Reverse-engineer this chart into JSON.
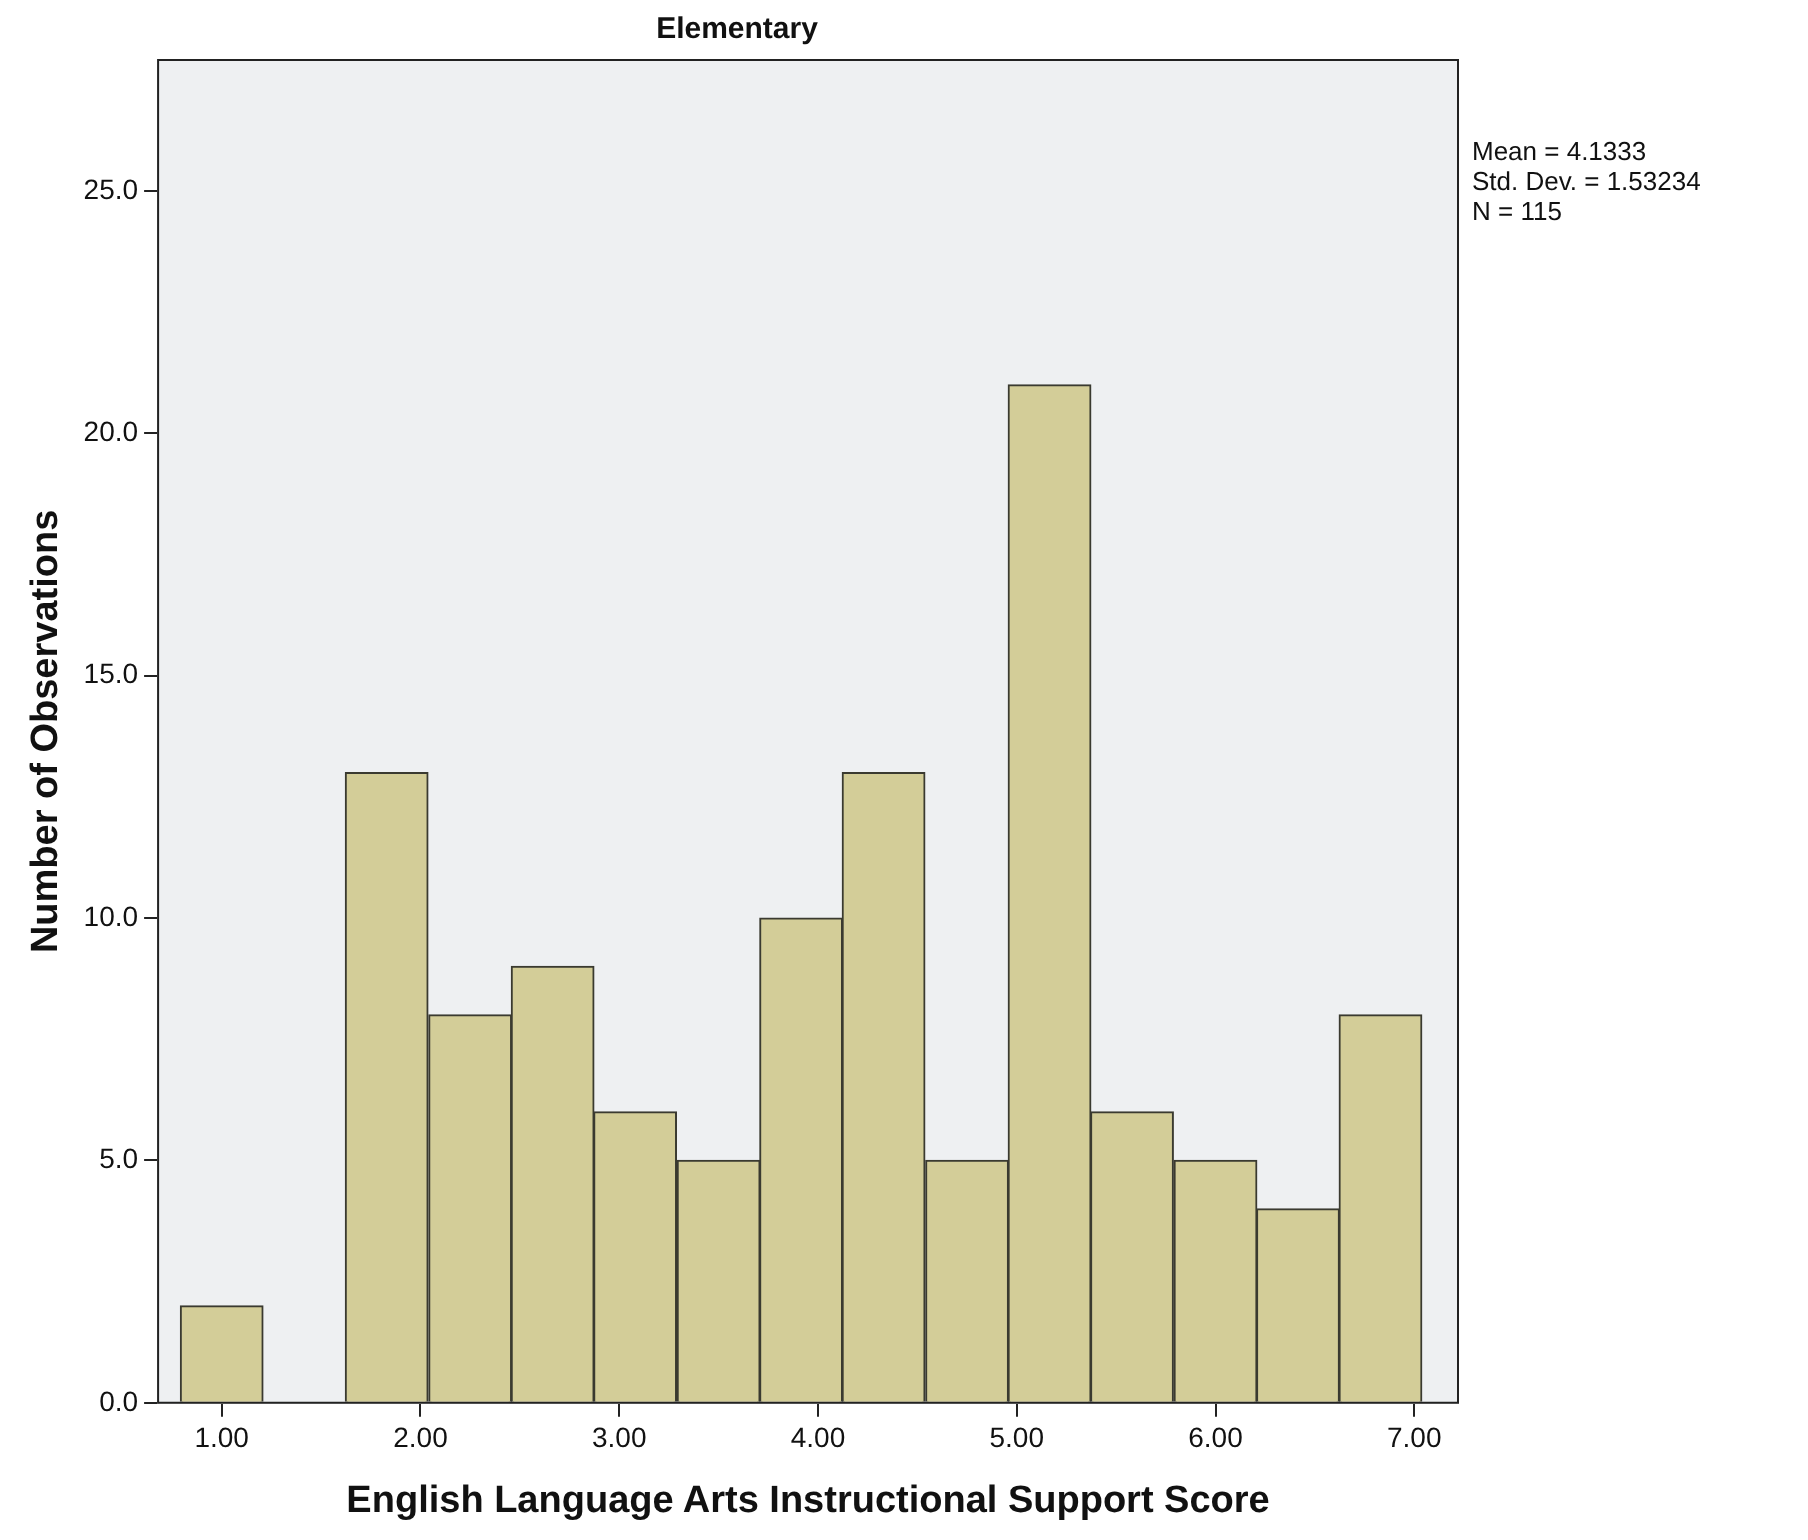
{
  "chart_data": {
    "type": "histogram",
    "title": "Elementary",
    "xlabel": "English Language Arts Instructional Support Score",
    "ylabel": "Number of Observations",
    "bins": [
      0.79,
      1.21,
      1.62,
      2.04,
      2.46,
      2.87,
      3.29,
      3.71,
      4.12,
      4.54,
      4.96,
      5.37,
      5.79,
      6.21,
      6.62,
      7.04
    ],
    "values": [
      2,
      0,
      13,
      8,
      9,
      6,
      5,
      10,
      13,
      5,
      21,
      6,
      5,
      4,
      8
    ],
    "color": "#d3cd98",
    "xlim": [
      0.68,
      7.22
    ],
    "xticks": [
      {
        "value": 1,
        "label": "1.00"
      },
      {
        "value": 2,
        "label": "2.00"
      },
      {
        "value": 3,
        "label": "3.00"
      },
      {
        "value": 4,
        "label": "4.00"
      },
      {
        "value": 5,
        "label": "5.00"
      },
      {
        "value": 6,
        "label": "6.00"
      },
      {
        "value": 7,
        "label": "7.00"
      }
    ],
    "ylim": [
      0,
      27.7
    ],
    "yticks": [
      {
        "value": 0,
        "label": "0.0"
      },
      {
        "value": 5,
        "label": "5.0"
      },
      {
        "value": 10,
        "label": "10.0"
      },
      {
        "value": 15,
        "label": "15.0"
      },
      {
        "value": 20,
        "label": "20.0"
      },
      {
        "value": 25,
        "label": "25.0"
      }
    ],
    "grid": false,
    "legend": false,
    "annotations": [
      "Mean = 4.1333",
      "Std. Dev. = 1.53234",
      "N = 115"
    ]
  }
}
